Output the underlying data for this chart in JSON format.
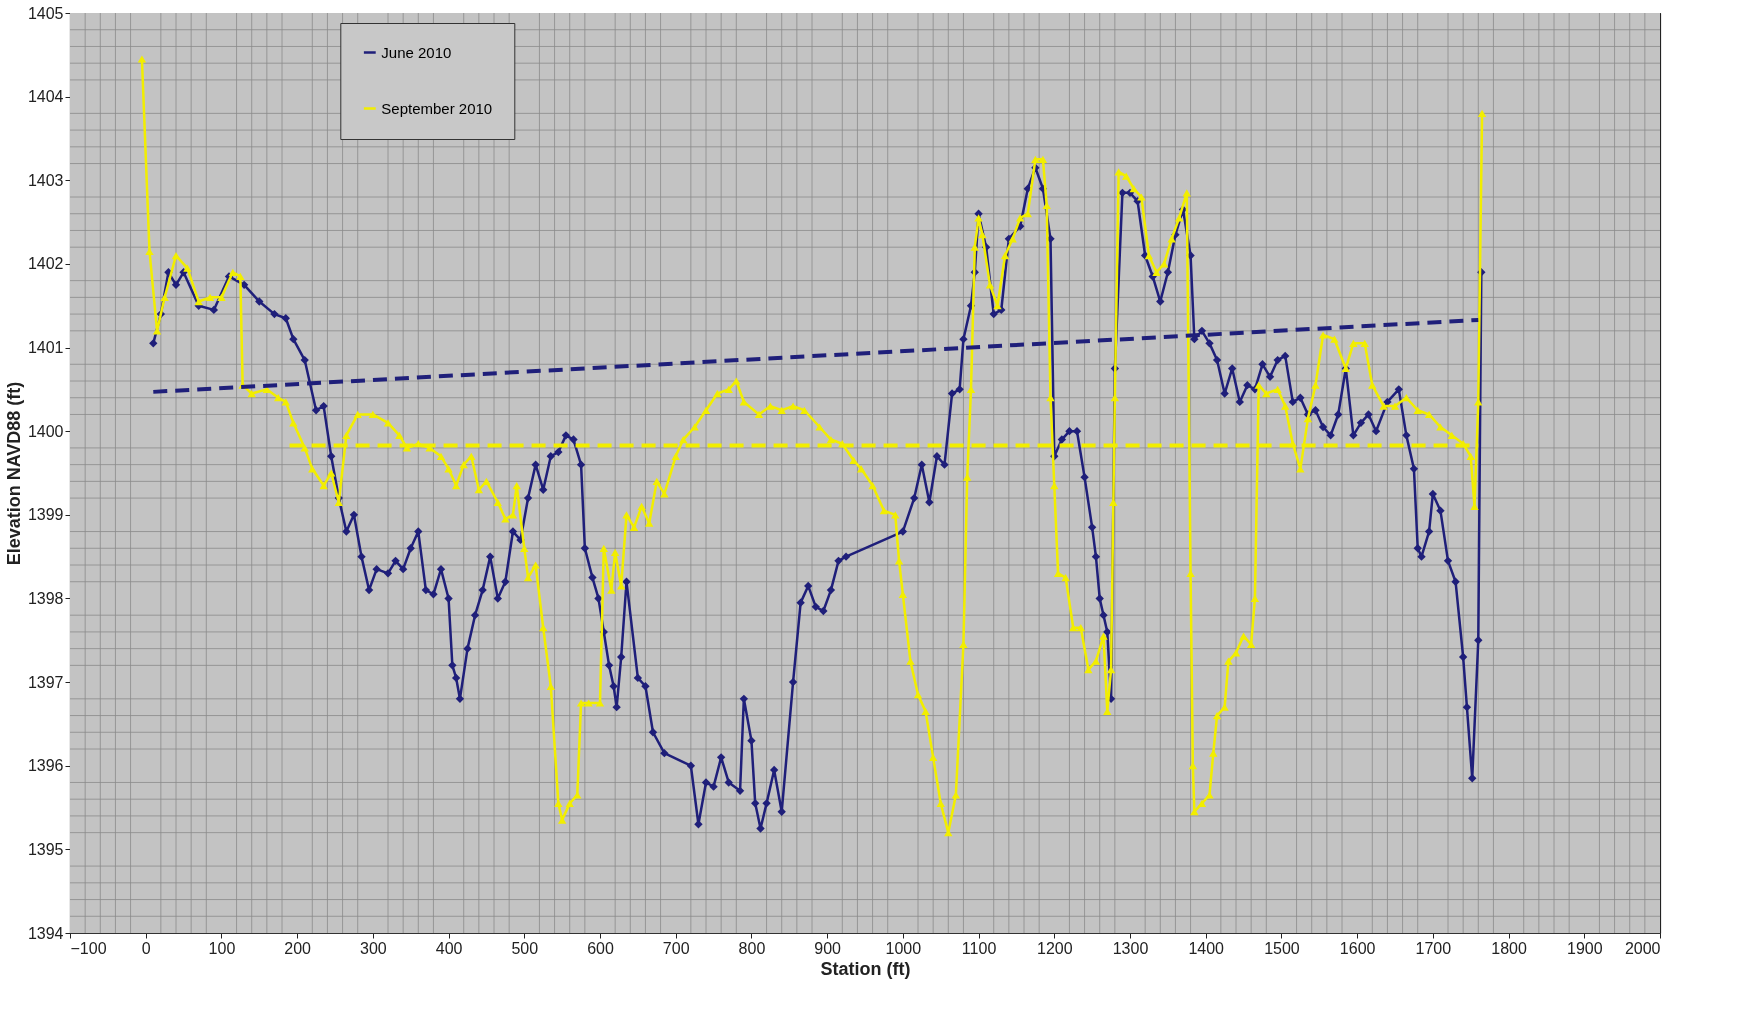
{
  "chart_data": {
    "type": "line",
    "xlabel": "Station (ft)",
    "ylabel": "Elevation NAVD88 (ft)",
    "xlim": [
      -100,
      2000
    ],
    "xticks": [
      -100,
      0,
      100,
      200,
      300,
      400,
      500,
      600,
      700,
      800,
      900,
      1000,
      1100,
      1200,
      1300,
      1400,
      1500,
      1600,
      1700,
      1800,
      1900,
      2000
    ],
    "ylim": [
      1394,
      1405
    ],
    "yticks": [
      1394,
      1395,
      1396,
      1397,
      1398,
      1399,
      1400,
      1401,
      1402,
      1403,
      1404,
      1405
    ],
    "grid": true,
    "legend": "top left",
    "line_style": "solid",
    "series": [
      {
        "name": "June 2010",
        "color": "#1f1f7a",
        "marker": "diamond",
        "x": [
          10,
          20,
          30,
          40,
          50,
          70,
          90,
          110,
          130,
          150,
          170,
          185,
          195,
          210,
          225,
          235,
          245,
          255,
          265,
          275,
          285,
          295,
          305,
          320,
          330,
          340,
          350,
          360,
          370,
          380,
          390,
          400,
          405,
          410,
          415,
          425,
          435,
          445,
          455,
          465,
          475,
          485,
          495,
          505,
          515,
          525,
          535,
          545,
          555,
          565,
          575,
          580,
          590,
          598,
          605,
          612,
          618,
          622,
          628,
          635,
          650,
          660,
          670,
          685,
          720,
          730,
          740,
          750,
          760,
          770,
          785,
          790,
          800,
          805,
          812,
          820,
          830,
          840,
          855,
          865,
          875,
          885,
          895,
          905,
          915,
          925,
          1000,
          1015,
          1025,
          1035,
          1045,
          1055,
          1065,
          1075,
          1080,
          1090,
          1095,
          1100,
          1110,
          1120,
          1130,
          1140,
          1155,
          1165,
          1175,
          1185,
          1195,
          1200,
          1210,
          1220,
          1230,
          1240,
          1250,
          1255,
          1260,
          1265,
          1270,
          1275,
          1280,
          1290,
          1300,
          1310,
          1320,
          1330,
          1340,
          1350,
          1360,
          1370,
          1380,
          1385,
          1395,
          1405,
          1415,
          1425,
          1435,
          1445,
          1455,
          1465,
          1475,
          1485,
          1495,
          1505,
          1515,
          1525,
          1535,
          1545,
          1555,
          1565,
          1575,
          1585,
          1595,
          1605,
          1615,
          1625,
          1640,
          1655,
          1665,
          1675,
          1680,
          1685,
          1695,
          1700,
          1710,
          1720,
          1730,
          1740,
          1745,
          1752,
          1760,
          1764
        ],
        "values": [
          1401.05,
          1401.4,
          1401.9,
          1401.75,
          1401.9,
          1401.5,
          1401.45,
          1401.85,
          1401.75,
          1401.55,
          1401.4,
          1401.35,
          1401.1,
          1400.85,
          1400.25,
          1400.3,
          1399.7,
          1399.2,
          1398.8,
          1399.0,
          1398.5,
          1398.1,
          1398.35,
          1398.3,
          1398.45,
          1398.35,
          1398.6,
          1398.8,
          1398.1,
          1398.05,
          1398.35,
          1398.0,
          1397.2,
          1397.05,
          1396.8,
          1397.4,
          1397.8,
          1398.1,
          1398.5,
          1398.0,
          1398.2,
          1398.8,
          1398.7,
          1399.2,
          1399.6,
          1399.3,
          1399.7,
          1399.75,
          1399.95,
          1399.9,
          1399.6,
          1398.6,
          1398.25,
          1398.0,
          1397.6,
          1397.2,
          1396.95,
          1396.7,
          1397.3,
          1398.2,
          1397.05,
          1396.95,
          1396.4,
          1396.15,
          1396.0,
          1395.3,
          1395.8,
          1395.75,
          1396.1,
          1395.8,
          1395.7,
          1396.8,
          1396.3,
          1395.55,
          1395.25,
          1395.55,
          1395.95,
          1395.45,
          1397.0,
          1397.95,
          1398.15,
          1397.9,
          1397.85,
          1398.1,
          1398.45,
          1398.5,
          1398.8,
          1399.2,
          1399.6,
          1399.15,
          1399.7,
          1399.6,
          1400.45,
          1400.5,
          1401.1,
          1401.5,
          1401.9,
          1402.6,
          1402.2,
          1401.4,
          1401.45,
          1402.3,
          1402.45,
          1402.9,
          1403.15,
          1402.9,
          1402.3,
          1399.7,
          1399.9,
          1400.0,
          1400.0,
          1399.45,
          1398.85,
          1398.5,
          1398.0,
          1397.8,
          1397.6,
          1396.8,
          1400.75,
          1402.85,
          1402.85,
          1402.75,
          1402.1,
          1401.85,
          1401.55,
          1401.9,
          1402.35,
          1402.65,
          1402.1,
          1401.1,
          1401.2,
          1401.05,
          1400.85,
          1400.45,
          1400.75,
          1400.35,
          1400.55,
          1400.5,
          1400.8,
          1400.65,
          1400.85,
          1400.9,
          1400.35,
          1400.4,
          1400.2,
          1400.25,
          1400.05,
          1399.95,
          1400.2,
          1400.75,
          1399.95,
          1400.1,
          1400.2,
          1400.0,
          1400.35,
          1400.5,
          1399.95,
          1399.55,
          1398.6,
          1398.5,
          1398.8,
          1399.25,
          1399.05,
          1398.45,
          1398.2,
          1397.3,
          1396.7,
          1395.85,
          1397.5,
          1401.9
        ]
      },
      {
        "name": "September 2010",
        "color": "#f2ee00",
        "marker": "triangle",
        "x": [
          -5,
          5,
          15,
          25,
          40,
          55,
          70,
          85,
          100,
          115,
          125,
          128,
          140,
          160,
          175,
          185,
          195,
          210,
          220,
          235,
          245,
          255,
          265,
          280,
          300,
          320,
          335,
          345,
          360,
          375,
          390,
          400,
          410,
          420,
          430,
          440,
          450,
          465,
          475,
          485,
          490,
          500,
          505,
          515,
          525,
          535,
          545,
          550,
          560,
          570,
          575,
          585,
          600,
          605,
          615,
          620,
          628,
          635,
          645,
          655,
          665,
          675,
          685,
          700,
          710,
          725,
          740,
          755,
          770,
          780,
          790,
          810,
          825,
          840,
          855,
          870,
          890,
          905,
          920,
          935,
          945,
          960,
          975,
          990,
          995,
          1000,
          1010,
          1020,
          1030,
          1040,
          1050,
          1060,
          1070,
          1080,
          1085,
          1090,
          1095,
          1100,
          1105,
          1115,
          1125,
          1135,
          1145,
          1155,
          1165,
          1175,
          1185,
          1190,
          1195,
          1200,
          1205,
          1215,
          1225,
          1235,
          1245,
          1255,
          1265,
          1270,
          1275,
          1278,
          1280,
          1285,
          1295,
          1305,
          1315,
          1325,
          1335,
          1345,
          1355,
          1365,
          1375,
          1380,
          1383,
          1385,
          1395,
          1405,
          1410,
          1415,
          1425,
          1430,
          1440,
          1450,
          1460,
          1465,
          1470,
          1480,
          1495,
          1505,
          1515,
          1525,
          1535,
          1545,
          1555,
          1570,
          1585,
          1595,
          1610,
          1620,
          1635,
          1650,
          1665,
          1680,
          1695,
          1710,
          1725,
          1740,
          1750,
          1755,
          1760,
          1765
        ],
        "values": [
          1404.45,
          1402.15,
          1401.2,
          1401.6,
          1402.1,
          1401.95,
          1401.55,
          1401.6,
          1401.6,
          1401.9,
          1401.85,
          1400.55,
          1400.45,
          1400.5,
          1400.4,
          1400.35,
          1400.1,
          1399.8,
          1399.55,
          1399.35,
          1399.5,
          1399.15,
          1399.95,
          1400.2,
          1400.2,
          1400.1,
          1399.95,
          1399.8,
          1399.85,
          1399.8,
          1399.7,
          1399.55,
          1399.35,
          1399.6,
          1399.7,
          1399.3,
          1399.4,
          1399.15,
          1398.95,
          1399.0,
          1399.35,
          1398.6,
          1398.25,
          1398.4,
          1397.65,
          1396.95,
          1395.55,
          1395.35,
          1395.55,
          1395.65,
          1396.75,
          1396.75,
          1396.75,
          1398.6,
          1398.1,
          1398.55,
          1398.15,
          1399.0,
          1398.85,
          1399.1,
          1398.9,
          1399.4,
          1399.25,
          1399.7,
          1399.9,
          1400.05,
          1400.25,
          1400.45,
          1400.5,
          1400.6,
          1400.35,
          1400.2,
          1400.3,
          1400.25,
          1400.3,
          1400.25,
          1400.05,
          1399.9,
          1399.85,
          1399.65,
          1399.55,
          1399.35,
          1399.05,
          1399.0,
          1398.45,
          1398.05,
          1397.25,
          1396.85,
          1396.65,
          1396.1,
          1395.55,
          1395.2,
          1395.65,
          1397.45,
          1399.45,
          1400.5,
          1402.2,
          1402.55,
          1402.35,
          1401.75,
          1401.5,
          1402.1,
          1402.3,
          1402.55,
          1402.6,
          1403.25,
          1403.25,
          1402.7,
          1400.4,
          1399.35,
          1398.3,
          1398.25,
          1397.65,
          1397.65,
          1397.15,
          1397.25,
          1397.55,
          1396.65,
          1397.15,
          1399.15,
          1400.4,
          1403.1,
          1403.05,
          1402.9,
          1402.8,
          1402.1,
          1401.9,
          1402.0,
          1402.3,
          1402.55,
          1402.85,
          1398.3,
          1396.0,
          1395.45,
          1395.55,
          1395.65,
          1396.15,
          1396.6,
          1396.7,
          1397.25,
          1397.35,
          1397.55,
          1397.45,
          1398.0,
          1400.55,
          1400.45,
          1400.5,
          1400.3,
          1399.85,
          1399.55,
          1400.15,
          1400.55,
          1401.15,
          1401.1,
          1400.75,
          1401.05,
          1401.05,
          1400.55,
          1400.3,
          1400.3,
          1400.4,
          1400.25,
          1400.2,
          1400.05,
          1399.95,
          1399.85,
          1399.7,
          1399.1,
          1400.35,
          1403.8
        ]
      },
      {
        "type": "line",
        "color": "#1f1f7a",
        "line_style": "dashed",
        "marker": "none",
        "x": [
          10,
          1760
        ],
        "values": [
          1400.47,
          1401.33
        ]
      },
      {
        "type": "line",
        "color": "#f2ee00",
        "line_style": "dashed",
        "marker": "none",
        "x": [
          190,
          1760
        ],
        "values": [
          1399.83,
          1399.83
        ]
      }
    ]
  }
}
